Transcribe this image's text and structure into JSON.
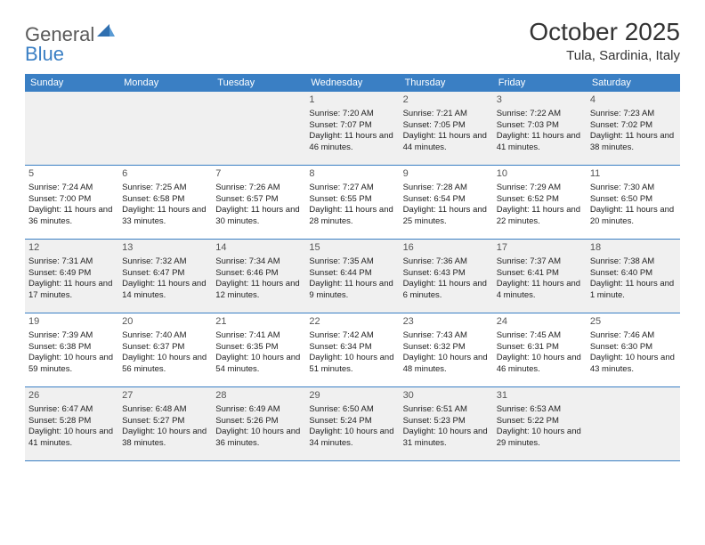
{
  "branding": {
    "logo_general": "General",
    "logo_blue": "Blue"
  },
  "header": {
    "month_title": "October 2025",
    "location": "Tula, Sardinia, Italy"
  },
  "colors": {
    "header_blue": "#3a7fc4",
    "shaded_bg": "#f0f0f0",
    "text": "#222222",
    "logo_gray": "#5a5a5a"
  },
  "weekdays": [
    "Sunday",
    "Monday",
    "Tuesday",
    "Wednesday",
    "Thursday",
    "Friday",
    "Saturday"
  ],
  "weeks": [
    [
      {
        "day": "",
        "sunrise": "",
        "sunset": "",
        "daylight": ""
      },
      {
        "day": "",
        "sunrise": "",
        "sunset": "",
        "daylight": ""
      },
      {
        "day": "",
        "sunrise": "",
        "sunset": "",
        "daylight": ""
      },
      {
        "day": "1",
        "sunrise": "Sunrise: 7:20 AM",
        "sunset": "Sunset: 7:07 PM",
        "daylight": "Daylight: 11 hours and 46 minutes."
      },
      {
        "day": "2",
        "sunrise": "Sunrise: 7:21 AM",
        "sunset": "Sunset: 7:05 PM",
        "daylight": "Daylight: 11 hours and 44 minutes."
      },
      {
        "day": "3",
        "sunrise": "Sunrise: 7:22 AM",
        "sunset": "Sunset: 7:03 PM",
        "daylight": "Daylight: 11 hours and 41 minutes."
      },
      {
        "day": "4",
        "sunrise": "Sunrise: 7:23 AM",
        "sunset": "Sunset: 7:02 PM",
        "daylight": "Daylight: 11 hours and 38 minutes."
      }
    ],
    [
      {
        "day": "5",
        "sunrise": "Sunrise: 7:24 AM",
        "sunset": "Sunset: 7:00 PM",
        "daylight": "Daylight: 11 hours and 36 minutes."
      },
      {
        "day": "6",
        "sunrise": "Sunrise: 7:25 AM",
        "sunset": "Sunset: 6:58 PM",
        "daylight": "Daylight: 11 hours and 33 minutes."
      },
      {
        "day": "7",
        "sunrise": "Sunrise: 7:26 AM",
        "sunset": "Sunset: 6:57 PM",
        "daylight": "Daylight: 11 hours and 30 minutes."
      },
      {
        "day": "8",
        "sunrise": "Sunrise: 7:27 AM",
        "sunset": "Sunset: 6:55 PM",
        "daylight": "Daylight: 11 hours and 28 minutes."
      },
      {
        "day": "9",
        "sunrise": "Sunrise: 7:28 AM",
        "sunset": "Sunset: 6:54 PM",
        "daylight": "Daylight: 11 hours and 25 minutes."
      },
      {
        "day": "10",
        "sunrise": "Sunrise: 7:29 AM",
        "sunset": "Sunset: 6:52 PM",
        "daylight": "Daylight: 11 hours and 22 minutes."
      },
      {
        "day": "11",
        "sunrise": "Sunrise: 7:30 AM",
        "sunset": "Sunset: 6:50 PM",
        "daylight": "Daylight: 11 hours and 20 minutes."
      }
    ],
    [
      {
        "day": "12",
        "sunrise": "Sunrise: 7:31 AM",
        "sunset": "Sunset: 6:49 PM",
        "daylight": "Daylight: 11 hours and 17 minutes."
      },
      {
        "day": "13",
        "sunrise": "Sunrise: 7:32 AM",
        "sunset": "Sunset: 6:47 PM",
        "daylight": "Daylight: 11 hours and 14 minutes."
      },
      {
        "day": "14",
        "sunrise": "Sunrise: 7:34 AM",
        "sunset": "Sunset: 6:46 PM",
        "daylight": "Daylight: 11 hours and 12 minutes."
      },
      {
        "day": "15",
        "sunrise": "Sunrise: 7:35 AM",
        "sunset": "Sunset: 6:44 PM",
        "daylight": "Daylight: 11 hours and 9 minutes."
      },
      {
        "day": "16",
        "sunrise": "Sunrise: 7:36 AM",
        "sunset": "Sunset: 6:43 PM",
        "daylight": "Daylight: 11 hours and 6 minutes."
      },
      {
        "day": "17",
        "sunrise": "Sunrise: 7:37 AM",
        "sunset": "Sunset: 6:41 PM",
        "daylight": "Daylight: 11 hours and 4 minutes."
      },
      {
        "day": "18",
        "sunrise": "Sunrise: 7:38 AM",
        "sunset": "Sunset: 6:40 PM",
        "daylight": "Daylight: 11 hours and 1 minute."
      }
    ],
    [
      {
        "day": "19",
        "sunrise": "Sunrise: 7:39 AM",
        "sunset": "Sunset: 6:38 PM",
        "daylight": "Daylight: 10 hours and 59 minutes."
      },
      {
        "day": "20",
        "sunrise": "Sunrise: 7:40 AM",
        "sunset": "Sunset: 6:37 PM",
        "daylight": "Daylight: 10 hours and 56 minutes."
      },
      {
        "day": "21",
        "sunrise": "Sunrise: 7:41 AM",
        "sunset": "Sunset: 6:35 PM",
        "daylight": "Daylight: 10 hours and 54 minutes."
      },
      {
        "day": "22",
        "sunrise": "Sunrise: 7:42 AM",
        "sunset": "Sunset: 6:34 PM",
        "daylight": "Daylight: 10 hours and 51 minutes."
      },
      {
        "day": "23",
        "sunrise": "Sunrise: 7:43 AM",
        "sunset": "Sunset: 6:32 PM",
        "daylight": "Daylight: 10 hours and 48 minutes."
      },
      {
        "day": "24",
        "sunrise": "Sunrise: 7:45 AM",
        "sunset": "Sunset: 6:31 PM",
        "daylight": "Daylight: 10 hours and 46 minutes."
      },
      {
        "day": "25",
        "sunrise": "Sunrise: 7:46 AM",
        "sunset": "Sunset: 6:30 PM",
        "daylight": "Daylight: 10 hours and 43 minutes."
      }
    ],
    [
      {
        "day": "26",
        "sunrise": "Sunrise: 6:47 AM",
        "sunset": "Sunset: 5:28 PM",
        "daylight": "Daylight: 10 hours and 41 minutes."
      },
      {
        "day": "27",
        "sunrise": "Sunrise: 6:48 AM",
        "sunset": "Sunset: 5:27 PM",
        "daylight": "Daylight: 10 hours and 38 minutes."
      },
      {
        "day": "28",
        "sunrise": "Sunrise: 6:49 AM",
        "sunset": "Sunset: 5:26 PM",
        "daylight": "Daylight: 10 hours and 36 minutes."
      },
      {
        "day": "29",
        "sunrise": "Sunrise: 6:50 AM",
        "sunset": "Sunset: 5:24 PM",
        "daylight": "Daylight: 10 hours and 34 minutes."
      },
      {
        "day": "30",
        "sunrise": "Sunrise: 6:51 AM",
        "sunset": "Sunset: 5:23 PM",
        "daylight": "Daylight: 10 hours and 31 minutes."
      },
      {
        "day": "31",
        "sunrise": "Sunrise: 6:53 AM",
        "sunset": "Sunset: 5:22 PM",
        "daylight": "Daylight: 10 hours and 29 minutes."
      },
      {
        "day": "",
        "sunrise": "",
        "sunset": "",
        "daylight": ""
      }
    ]
  ]
}
